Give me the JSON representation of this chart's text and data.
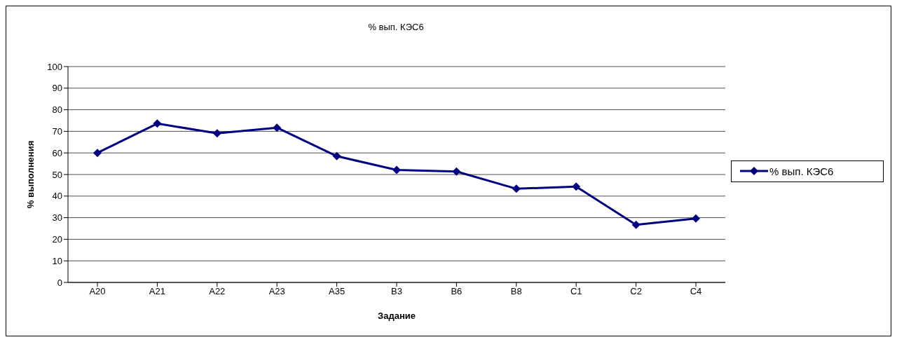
{
  "chart_data": {
    "type": "line",
    "title": "% вып. КЭС6",
    "xlabel": "Задание",
    "ylabel": "% выполнения",
    "categories": [
      "A20",
      "A21",
      "A22",
      "A23",
      "A35",
      "B3",
      "B6",
      "B8",
      "C1",
      "C2",
      "C4"
    ],
    "series": [
      {
        "name": "% вып. КЭС6",
        "color": "#000080",
        "values": [
          60,
          73.6,
          69.1,
          71.7,
          58.5,
          52.1,
          51.4,
          43.4,
          44.4,
          26.7,
          29.6
        ]
      }
    ],
    "ylim": [
      0,
      100
    ],
    "yticks": [
      0,
      10,
      20,
      30,
      40,
      50,
      60,
      70,
      80,
      90,
      100
    ],
    "grid": "y",
    "legend": "right",
    "marker": "diamond",
    "line_style": "solid"
  }
}
